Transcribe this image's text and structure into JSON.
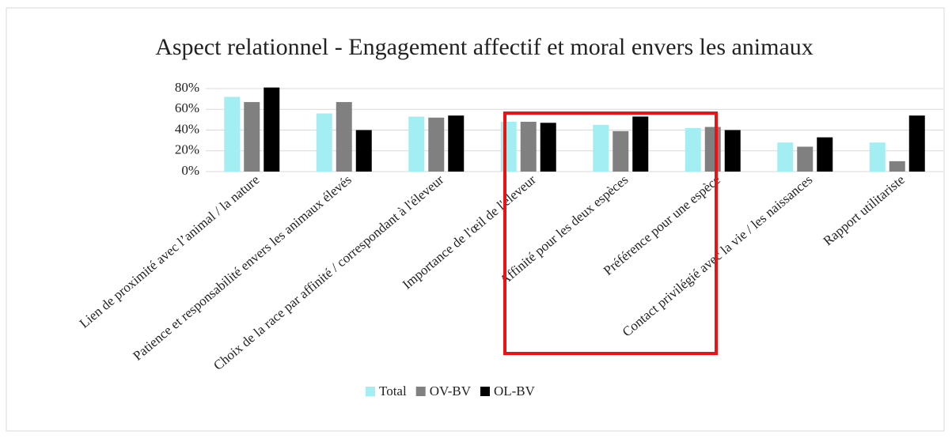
{
  "chart_data": {
    "type": "bar",
    "title": "Aspect relationnel - Engagement affectif et moral envers les animaux",
    "categories": [
      "Lien de proximité avec l’animal / la nature",
      "Patience et responsabilité envers les animaux élevés",
      "Choix de la race par affinité / correspondant à l'éleveur",
      "Importance de l'œil de l'éleveur",
      "Affinité pour les deux espèces",
      "Préférence pour une espèce",
      "Contact privilégié avec la vie / les naissances",
      "Rapport utilitariste"
    ],
    "series": [
      {
        "name": "Total",
        "color": "#a3eef2",
        "values": [
          72,
          56,
          53,
          48,
          45,
          42,
          28,
          28
        ]
      },
      {
        "name": "OV-BV",
        "color": "#808080",
        "values": [
          67,
          67,
          52,
          48,
          39,
          43,
          24,
          10
        ]
      },
      {
        "name": "OL-BV",
        "color": "#000000",
        "values": [
          81,
          40,
          54,
          47,
          53,
          40,
          33,
          54
        ]
      }
    ],
    "ylim": [
      0,
      80
    ],
    "yticks": [
      {
        "value": 0,
        "label": "0%"
      },
      {
        "value": 20,
        "label": "20%"
      },
      {
        "value": 40,
        "label": "40%"
      },
      {
        "value": 60,
        "label": "60%"
      },
      {
        "value": 80,
        "label": "80%"
      }
    ],
    "grid": true,
    "legend": "bottom"
  }
}
